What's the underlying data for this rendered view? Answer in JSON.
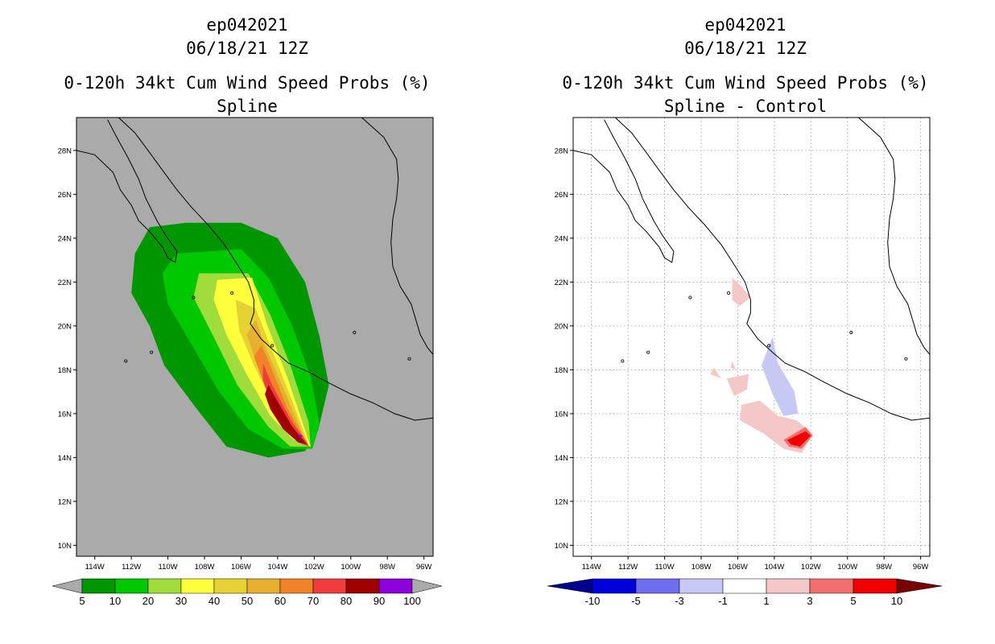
{
  "chart_data": [
    {
      "type": "contour-map",
      "storm_id": "ep042021",
      "datetime": "06/18/21 12Z",
      "title": "0-120h 34kt Cum Wind Speed Probs (%)",
      "subtitle": "Spline",
      "lon_range": [
        -115,
        -95.5
      ],
      "lat_range": [
        9.5,
        29.5
      ],
      "x_ticks": [
        "114W",
        "112W",
        "110W",
        "108W",
        "106W",
        "104W",
        "102W",
        "100W",
        "98W",
        "96W"
      ],
      "y_ticks": [
        "10N",
        "12N",
        "14N",
        "16N",
        "18N",
        "20N",
        "22N",
        "24N",
        "26N",
        "28N"
      ],
      "background": "#aaaaaa",
      "grid": false,
      "colorbar": {
        "labels": [
          "5",
          "10",
          "20",
          "30",
          "40",
          "50",
          "60",
          "70",
          "80",
          "90",
          "100"
        ],
        "colors": [
          "#009600",
          "#00c800",
          "#a0dc3c",
          "#ffff3c",
          "#e6d232",
          "#e6af2d",
          "#f08228",
          "#f03c3c",
          "#a00000",
          "#8c00dc"
        ],
        "under_color": "#aaaaaa",
        "over_color": "#aaaaaa"
      },
      "contours": [
        {
          "level": 5,
          "color": "#009600",
          "polygon": [
            [
              -111,
              24.5
            ],
            [
              -109,
              24.7
            ],
            [
              -106,
              24.7
            ],
            [
              -104,
              24
            ],
            [
              -102.5,
              22
            ],
            [
              -101.7,
              19.5
            ],
            [
              -101.2,
              17.3
            ],
            [
              -101.8,
              15.2
            ],
            [
              -102.5,
              14.3
            ],
            [
              -104.5,
              14
            ],
            [
              -106.8,
              14.5
            ],
            [
              -108.5,
              16.3
            ],
            [
              -110.2,
              18.2
            ],
            [
              -111,
              20
            ],
            [
              -112,
              21.5
            ],
            [
              -111.8,
              23.3
            ]
          ]
        },
        {
          "level": 10,
          "color": "#00c800",
          "polygon": [
            [
              -109.5,
              23.3
            ],
            [
              -106,
              23.5
            ],
            [
              -104.5,
              22.2
            ],
            [
              -103.2,
              20
            ],
            [
              -102.2,
              17.7
            ],
            [
              -101.7,
              15.5
            ],
            [
              -102.1,
              14.4
            ],
            [
              -103.7,
              14.4
            ],
            [
              -105.6,
              15.3
            ],
            [
              -107.2,
              17
            ],
            [
              -108.6,
              19
            ],
            [
              -110,
              21
            ],
            [
              -110.3,
              22.4
            ]
          ]
        },
        {
          "level": 20,
          "color": "#a0dc3c",
          "polygon": [
            [
              -108.3,
              22.4
            ],
            [
              -105.6,
              22.4
            ],
            [
              -104.4,
              20.5
            ],
            [
              -103.3,
              18.2
            ],
            [
              -102.3,
              15.6
            ],
            [
              -102.2,
              14.5
            ],
            [
              -103.3,
              14.5
            ],
            [
              -104.5,
              15.4
            ],
            [
              -106.2,
              17.3
            ],
            [
              -107.5,
              19.5
            ],
            [
              -108.6,
              21.3
            ]
          ]
        },
        {
          "level": 30,
          "color": "#ffff3c",
          "polygon": [
            [
              -107.3,
              22.1
            ],
            [
              -105.4,
              22.2
            ],
            [
              -104.6,
              20.1
            ],
            [
              -103.4,
              17.5
            ],
            [
              -102.4,
              15
            ],
            [
              -102.2,
              14.5
            ],
            [
              -103.1,
              14.8
            ],
            [
              -104.4,
              15.9
            ],
            [
              -105.7,
              17.8
            ],
            [
              -106.8,
              19.6
            ],
            [
              -107.5,
              21.2
            ]
          ]
        },
        {
          "level": 40,
          "color": "#e6d232",
          "polygon": [
            [
              -106.3,
              21.2
            ],
            [
              -105.2,
              20.8
            ],
            [
              -104.5,
              19.3
            ],
            [
              -103.3,
              16.8
            ],
            [
              -102.4,
              14.8
            ],
            [
              -102.3,
              14.5
            ],
            [
              -102.9,
              14.9
            ],
            [
              -104.1,
              16.2
            ],
            [
              -105.3,
              18.2
            ],
            [
              -106.1,
              19.8
            ]
          ]
        },
        {
          "level": 50,
          "color": "#e6af2d",
          "polygon": [
            [
              -105.2,
              20.3
            ],
            [
              -104.7,
              19.1
            ],
            [
              -103.4,
              16.6
            ],
            [
              -102.5,
              14.8
            ],
            [
              -102.3,
              14.5
            ],
            [
              -102.9,
              14.9
            ],
            [
              -104.1,
              16.4
            ],
            [
              -105.1,
              18.2
            ],
            [
              -105.7,
              19.6
            ]
          ]
        },
        {
          "level": 60,
          "color": "#f08228",
          "polygon": [
            [
              -104.9,
              19.1
            ],
            [
              -104.6,
              18.6
            ],
            [
              -103.5,
              16.3
            ],
            [
              -102.5,
              14.8
            ],
            [
              -102.3,
              14.5
            ],
            [
              -102.9,
              14.8
            ],
            [
              -104,
              16
            ],
            [
              -104.8,
              17.5
            ],
            [
              -105.3,
              18.6
            ]
          ]
        },
        {
          "level": 70,
          "color": "#f03c3c",
          "polygon": [
            [
              -104.8,
              18.3
            ],
            [
              -104.3,
              17.3
            ],
            [
              -103.2,
              15.6
            ],
            [
              -102.4,
              14.7
            ],
            [
              -102.3,
              14.5
            ],
            [
              -102.9,
              14.7
            ],
            [
              -103.7,
              15.4
            ],
            [
              -104.3,
              16.4
            ],
            [
              -104.8,
              17.5
            ]
          ]
        },
        {
          "level": 80,
          "color": "#a00000",
          "polygon": [
            [
              -104.5,
              17.3
            ],
            [
              -104.1,
              16.7
            ],
            [
              -103.2,
              15.4
            ],
            [
              -102.4,
              14.6
            ],
            [
              -102.9,
              14.7
            ],
            [
              -103.7,
              15.3
            ],
            [
              -104.4,
              16.2
            ],
            [
              -104.7,
              16.9
            ]
          ]
        },
        {
          "level": 90,
          "color": "#8c00dc",
          "polygon": [
            [
              -102.9,
              15.05
            ],
            [
              -102.6,
              15
            ],
            [
              -102.8,
              14.9
            ]
          ]
        }
      ]
    },
    {
      "type": "contour-map",
      "storm_id": "ep042021",
      "datetime": "06/18/21 12Z",
      "title": "0-120h 34kt Cum Wind Speed Probs (%)",
      "subtitle": "Spline - Control",
      "lon_range": [
        -115,
        -95.5
      ],
      "lat_range": [
        9.5,
        29.5
      ],
      "x_ticks": [
        "114W",
        "112W",
        "110W",
        "108W",
        "106W",
        "104W",
        "102W",
        "100W",
        "98W",
        "96W"
      ],
      "y_ticks": [
        "10N",
        "12N",
        "14N",
        "16N",
        "18N",
        "20N",
        "22N",
        "24N",
        "26N",
        "28N"
      ],
      "background": "#ffffff",
      "grid": true,
      "colorbar": {
        "labels": [
          "-10",
          "-5",
          "-3",
          "-1",
          "1",
          "3",
          "5",
          "10"
        ],
        "colors": [
          "#0000dc",
          "#6e6ef0",
          "#c8c8f5",
          "#ffffff",
          "#f5c8c8",
          "#f07070",
          "#f00000"
        ],
        "under_color": "#00008c",
        "over_color": "#780000"
      },
      "contours": [
        {
          "level": 1,
          "color": "#f5c8c8",
          "polygon": [
            [
              -106.3,
              22.2
            ],
            [
              -105.8,
              21.8
            ],
            [
              -105.3,
              21.3
            ],
            [
              -105.9,
              20.9
            ],
            [
              -106.3,
              21.2
            ]
          ]
        },
        {
          "level": -1,
          "color": "#c8c8f5",
          "polygon": [
            [
              -104.1,
              19.5
            ],
            [
              -103.8,
              18.3
            ],
            [
              -102.9,
              17
            ],
            [
              -102.7,
              16
            ],
            [
              -103.5,
              15.9
            ],
            [
              -104.1,
              16.9
            ],
            [
              -104.7,
              18.2
            ]
          ]
        },
        {
          "level": 1,
          "color": "#f5c8c8",
          "polygon": [
            [
              -107.3,
              18.1
            ],
            [
              -106.9,
              17.6
            ],
            [
              -107.5,
              17.8
            ]
          ]
        },
        {
          "level": 1,
          "color": "#f5c8c8",
          "polygon": [
            [
              -106.3,
              18.4
            ],
            [
              -106.1,
              18
            ],
            [
              -106.4,
              18.1
            ]
          ]
        },
        {
          "level": 1,
          "color": "#f5c8c8",
          "polygon": [
            [
              -106.6,
              17.6
            ],
            [
              -105.4,
              17.8
            ],
            [
              -105.5,
              17.1
            ],
            [
              -106.2,
              16.8
            ]
          ]
        },
        {
          "level": 1,
          "color": "#f5c8c8",
          "polygon": [
            [
              -105.8,
              16.4
            ],
            [
              -104.8,
              16.6
            ],
            [
              -103.8,
              15.9
            ],
            [
              -102.8,
              15.7
            ],
            [
              -101.9,
              15.1
            ],
            [
              -102.5,
              14.2
            ],
            [
              -103.5,
              14.4
            ],
            [
              -104.6,
              15.1
            ],
            [
              -105.9,
              15.7
            ]
          ]
        },
        {
          "level": 3,
          "color": "#f07070",
          "polygon": [
            [
              -103.5,
              14.8
            ],
            [
              -102.3,
              15.4
            ],
            [
              -101.9,
              15
            ],
            [
              -102.5,
              14.4
            ],
            [
              -103.2,
              14.5
            ]
          ]
        },
        {
          "level": 5,
          "color": "#f00000",
          "polygon": [
            [
              -103.3,
              14.8
            ],
            [
              -102.3,
              15.2
            ],
            [
              -102,
              15
            ],
            [
              -102.6,
              14.5
            ],
            [
              -103.1,
              14.6
            ]
          ]
        }
      ]
    }
  ]
}
